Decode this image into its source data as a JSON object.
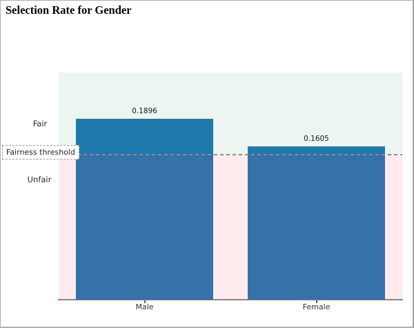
{
  "page": {
    "title": "Selection Rate for Gender"
  },
  "chart_data": {
    "type": "bar",
    "title": "Selection Rate for Gender",
    "categories": [
      "Male",
      "Female"
    ],
    "values": [
      0.1896,
      0.1605
    ],
    "value_labels": [
      "0.1896",
      "0.1605"
    ],
    "ylim": [
      0,
      0.238
    ],
    "xlabel": "",
    "ylabel": "",
    "grid": false,
    "legend": "none",
    "y_axis_ticks_visible": false,
    "bar_color": "#1f77b4",
    "plot_bg": "#ffffff",
    "threshold": {
      "label": "Fairness threshold",
      "value": 0.1517,
      "line_color": "#8c8c8c",
      "line_style": "dashed"
    },
    "zones": [
      {
        "label": "Fair",
        "position": "above_threshold",
        "tint": "#ecf5ee"
      },
      {
        "label": "Unfair",
        "position": "below_threshold",
        "tint": "#fdeef0"
      }
    ]
  }
}
